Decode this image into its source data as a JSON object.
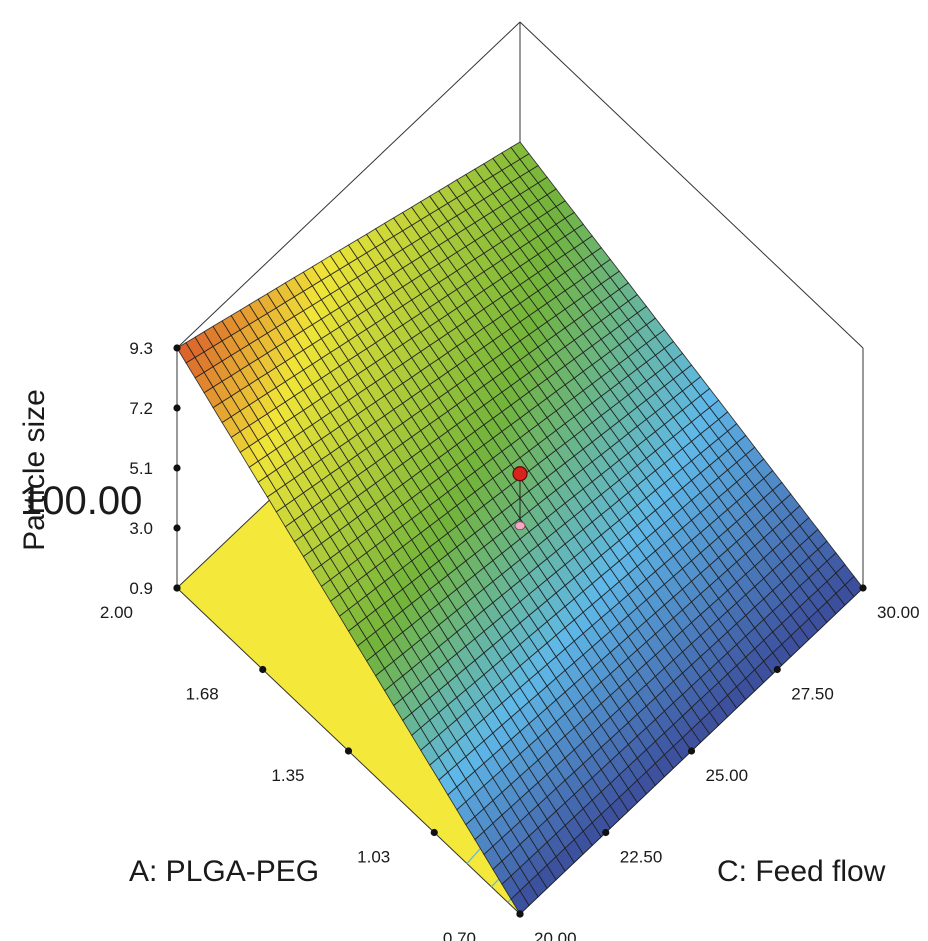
{
  "chart_data": {
    "type": "surface",
    "title": "",
    "zlabel": "Particle size",
    "xlabel": "A: PLGA-PEG",
    "ylabel": "C: Feed flow",
    "overlay_text": "100.00",
    "x_ticks": [
      "0.70",
      "1.03",
      "1.35",
      "1.68",
      "2.00"
    ],
    "y_ticks": [
      "20.00",
      "22.50",
      "25.00",
      "27.50",
      "30.00"
    ],
    "z_ticks": [
      "0.9",
      "3.0",
      "5.1",
      "7.2",
      "9.3"
    ],
    "xlim": [
      0.7,
      2.0
    ],
    "ylim": [
      20.0,
      30.0
    ],
    "zlim": [
      0.9,
      9.3
    ],
    "surface_corners": [
      {
        "x": 0.7,
        "y": 20.0,
        "z": 0.9
      },
      {
        "x": 2.0,
        "y": 20.0,
        "z": 9.3
      },
      {
        "x": 2.0,
        "y": 30.0,
        "z": 5.1
      },
      {
        "x": 0.7,
        "y": 30.0,
        "z": 0.9
      }
    ],
    "design_point": {
      "x": 1.35,
      "y": 25.0,
      "z": 4.9
    },
    "colors": {
      "surface_low": "#3b4c9a",
      "surface_mid": "#72b43b",
      "surface_high": "#f0e538",
      "surface_peak": "#d9572a",
      "floor": "#f4e83a",
      "point": "#d8221c",
      "point_projection": "#f2a9c4"
    }
  }
}
